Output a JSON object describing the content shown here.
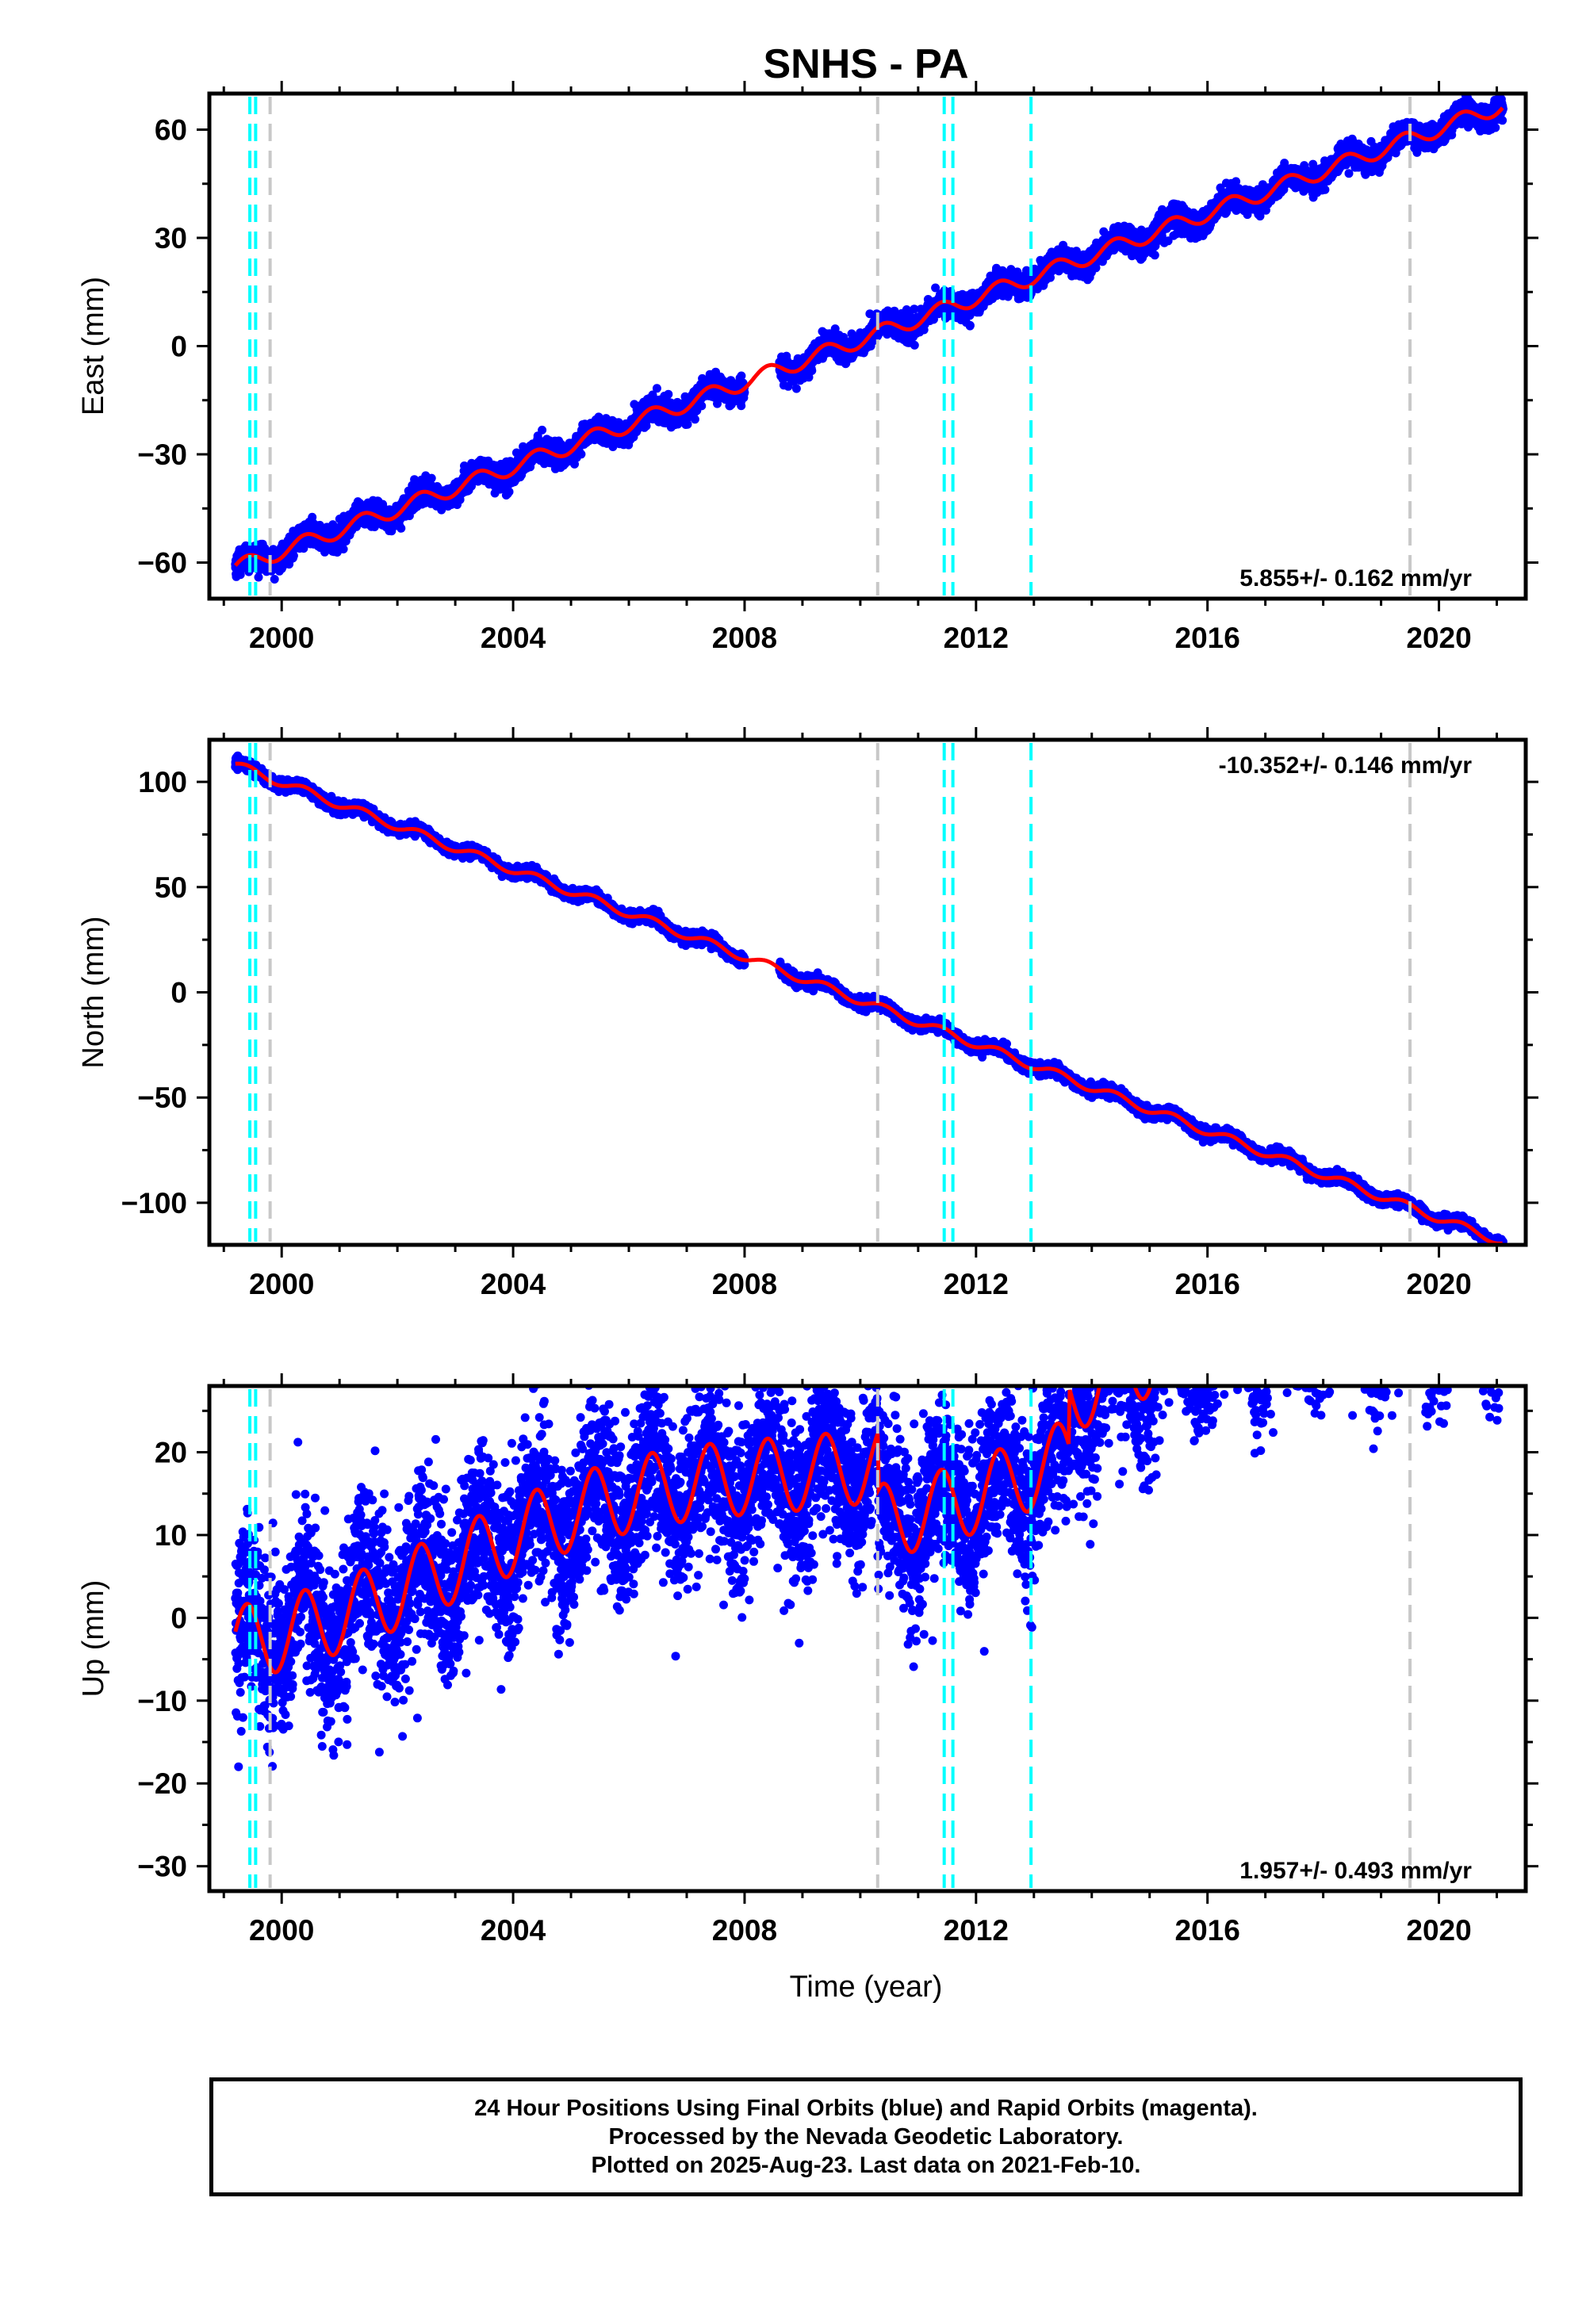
{
  "chart_data": [
    {
      "type": "scatter",
      "title": "SNHS - PA",
      "ylabel": "East (mm)",
      "xlabel": "",
      "xlim": [
        1998.75,
        2021.5
      ],
      "ylim": [
        -70,
        70
      ],
      "xticks": [
        2000,
        2004,
        2008,
        2012,
        2016,
        2020
      ],
      "yticks": [
        -60,
        -30,
        0,
        30,
        60
      ],
      "ytick_labels": [
        "−60",
        "−30",
        "0",
        "30",
        "60"
      ],
      "rate_label": "5.855+/- 0.162 mm/yr",
      "rate_position": "bottom-right",
      "model": {
        "t0": 1999.2,
        "v0": -61.5,
        "rate": 5.855,
        "seasonal_amp": 2.2,
        "noise": 1.6
      },
      "series": [
        {
          "role": "daily positions (final orbits)",
          "color": "#0000ff",
          "start": 1999.2,
          "end": 2021.11
        },
        {
          "role": "model fit",
          "color": "#ff0000"
        }
      ],
      "offsets": [
        {
          "type": "equipment change",
          "color": "#00ffff",
          "x": [
            1999.45,
            1999.55,
            2011.45,
            2011.6,
            2012.95
          ]
        },
        {
          "type": "other",
          "color": "#c8c8c8",
          "x": [
            1999.8,
            2010.3,
            2019.5
          ]
        }
      ]
    },
    {
      "type": "scatter",
      "title": "",
      "ylabel": "North (mm)",
      "xlabel": "",
      "xlim": [
        1998.75,
        2021.5
      ],
      "ylim": [
        -120,
        120
      ],
      "xticks": [
        2000,
        2004,
        2008,
        2012,
        2016,
        2020
      ],
      "yticks": [
        -100,
        -50,
        0,
        50,
        100
      ],
      "ytick_labels": [
        "−100",
        "−50",
        "0",
        "50",
        "100"
      ],
      "rate_label": "-10.352+/- 0.146 mm/yr",
      "rate_position": "top-right",
      "model": {
        "t0": 1999.2,
        "v0": 108,
        "rate": -10.352,
        "seasonal_amp": 2.0,
        "noise": 1.3
      },
      "series": [
        {
          "role": "daily positions (final orbits)",
          "color": "#0000ff",
          "start": 1999.2,
          "end": 2021.11
        },
        {
          "role": "model fit",
          "color": "#ff0000"
        }
      ],
      "offsets": [
        {
          "type": "equipment change",
          "color": "#00ffff",
          "x": [
            1999.45,
            1999.55,
            2011.45,
            2011.6,
            2012.95
          ]
        },
        {
          "type": "other",
          "color": "#c8c8c8",
          "x": [
            1999.8,
            2010.3,
            2019.5
          ]
        }
      ]
    },
    {
      "type": "scatter",
      "title": "",
      "ylabel": "Up (mm)",
      "xlabel": "Time (year)",
      "xlim": [
        1998.75,
        2021.5
      ],
      "ylim": [
        -33,
        28
      ],
      "xticks": [
        2000,
        2004,
        2008,
        2012,
        2016,
        2020
      ],
      "yticks": [
        -30,
        -20,
        -10,
        0,
        10,
        20
      ],
      "ytick_labels": [
        "−30",
        "−20",
        "−10",
        "0",
        "10",
        "20"
      ],
      "rate_label": "1.957+/- 0.493 mm/yr",
      "rate_position": "bottom-right",
      "model": {
        "t0": 1999.2,
        "v0": -1,
        "rate": 1.957,
        "seasonal_amp": 4.5,
        "noise": 5.0
      },
      "series": [
        {
          "role": "daily positions (final orbits)",
          "color": "#0000ff",
          "start": 1999.2,
          "end": 2021.11
        },
        {
          "role": "model fit",
          "color": "#ff0000"
        }
      ],
      "offsets": [
        {
          "type": "equipment change",
          "color": "#00ffff",
          "x": [
            1999.45,
            1999.55,
            2011.45,
            2011.6,
            2012.95
          ]
        },
        {
          "type": "other",
          "color": "#c8c8c8",
          "x": [
            1999.8,
            2010.3,
            2019.5
          ]
        }
      ]
    }
  ],
  "footer": {
    "line1": "24 Hour Positions Using Final Orbits (blue) and Rapid Orbits (magenta).",
    "line2": "Processed by the Nevada Geodetic Laboratory.",
    "line3": "Plotted on 2025-Aug-23. Last data on 2021-Feb-10."
  }
}
